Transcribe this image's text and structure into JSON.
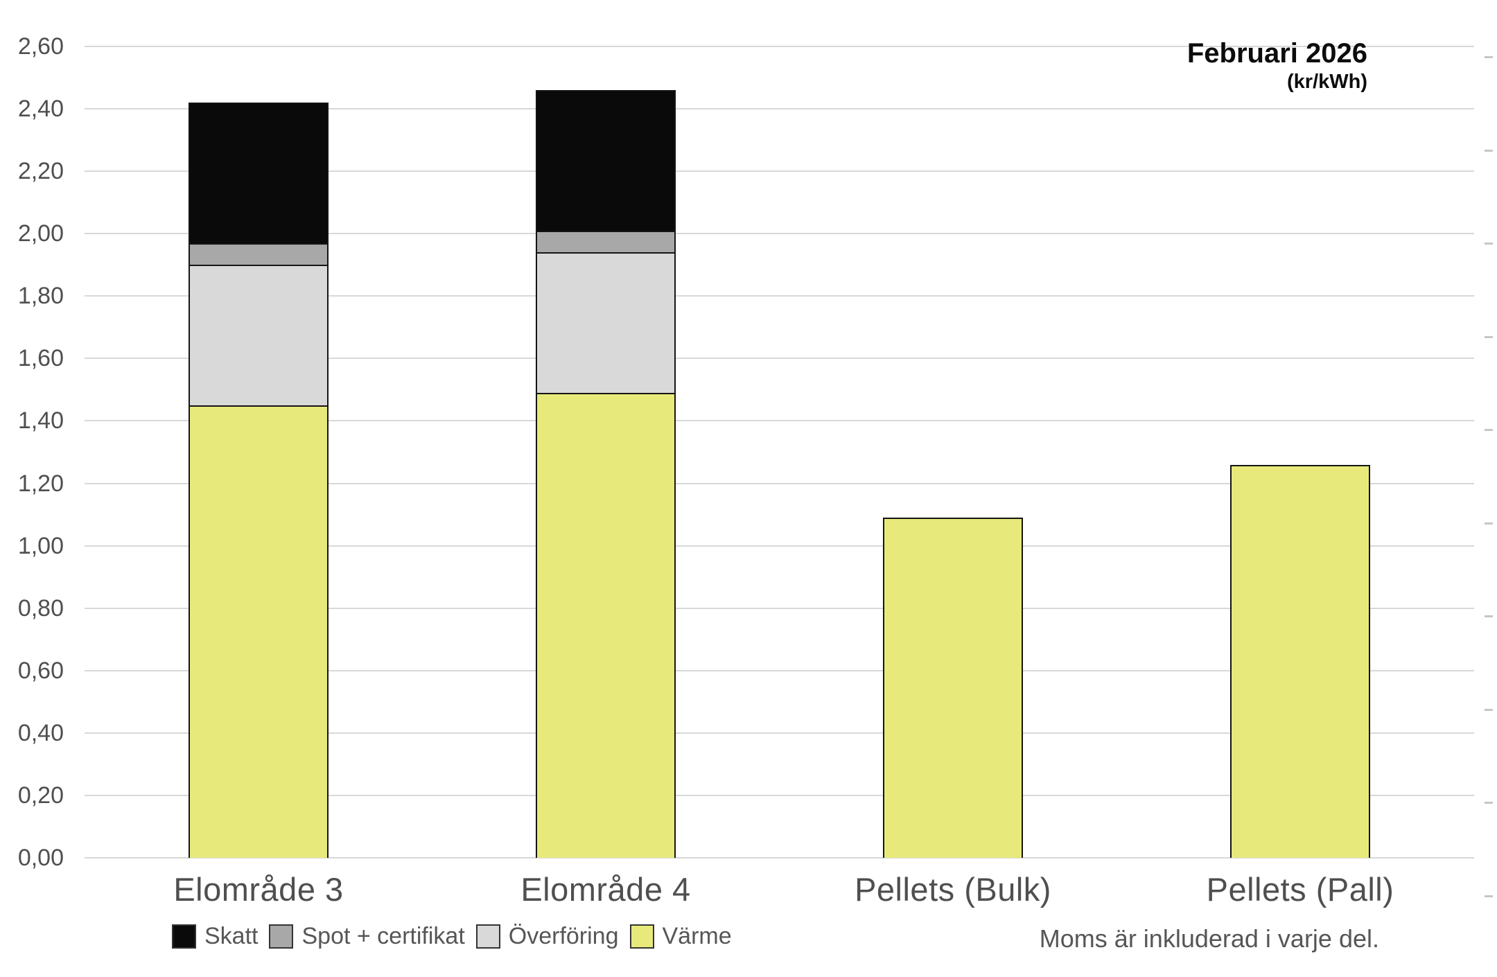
{
  "title": {
    "line1": "Februari 2026",
    "line2": "(kr/kWh)"
  },
  "footnote": "Moms är inkluderad i varje del.",
  "chart_data": {
    "type": "bar",
    "stacked": true,
    "title": "Februari 2026",
    "subtitle": "(kr/kWh)",
    "unit": "kr/kWh",
    "categories": [
      "Elområde 3",
      "Elområde 4",
      "Pellets (Bulk)",
      "Pellets (Pall)"
    ],
    "series": [
      {
        "name": "Skatt",
        "color": "#0A0A0A",
        "values": [
          0.45,
          0.45,
          0,
          0
        ]
      },
      {
        "name": "Spot + certifikat",
        "color": "#A8A8A8",
        "values": [
          0.07,
          0.07,
          0,
          0
        ]
      },
      {
        "name": "Överföring",
        "color": "#D9D9D9",
        "values": [
          0.45,
          0.45,
          0,
          0
        ]
      },
      {
        "name": "Värme",
        "color": "#E7EA7B",
        "values": [
          1.45,
          1.49,
          1.09,
          1.26
        ]
      }
    ],
    "totals": [
      2.42,
      2.46,
      1.09,
      1.26
    ],
    "ylim": [
      0,
      2.6
    ],
    "y_ticks": [
      {
        "value": 0.0,
        "label": "0,00"
      },
      {
        "value": 0.2,
        "label": "0,20"
      },
      {
        "value": 0.4,
        "label": "0,40"
      },
      {
        "value": 0.6,
        "label": "0,60"
      },
      {
        "value": 0.8,
        "label": "0,80"
      },
      {
        "value": 1.0,
        "label": "1,00"
      },
      {
        "value": 1.2,
        "label": "1,20"
      },
      {
        "value": 1.4,
        "label": "1,40"
      },
      {
        "value": 1.6,
        "label": "1,60"
      },
      {
        "value": 1.8,
        "label": "1,80"
      },
      {
        "value": 2.0,
        "label": "2,00"
      },
      {
        "value": 2.2,
        "label": "2,20"
      },
      {
        "value": 2.4,
        "label": "2,40"
      },
      {
        "value": 2.6,
        "label": "2,60"
      }
    ],
    "grid": "horizontal",
    "legend_position": "bottom-left",
    "legend": [
      "Skatt",
      "Spot + certifikat",
      "Överföring",
      "Värme"
    ],
    "footnote": "Moms är inkluderad i varje del.",
    "right_edge_tick_count": 10
  }
}
